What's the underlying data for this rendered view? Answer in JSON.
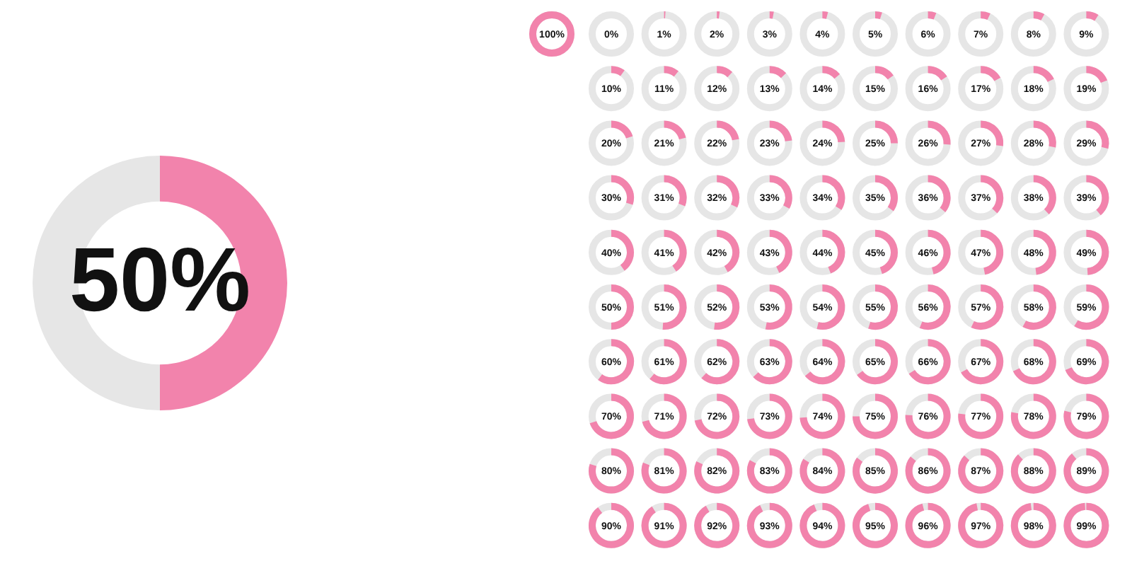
{
  "chart_data": [
    {
      "type": "donut",
      "categories": [
        null,
        null
      ],
      "values": [
        50,
        50
      ],
      "colors": [
        "#f283ac",
        "#e6e6e6"
      ],
      "annotations": [
        "50%"
      ]
    },
    {
      "type": "other",
      "color": "#f283ac",
      "values": [
        100,
        0,
        1,
        2,
        3,
        4,
        5,
        6,
        7,
        8,
        9,
        10,
        11,
        12,
        13,
        14,
        15,
        16,
        17,
        18,
        19,
        20,
        21,
        22,
        23,
        24,
        25,
        26,
        27,
        28,
        29,
        30,
        31,
        32,
        33,
        34,
        35,
        36,
        37,
        38,
        39,
        40,
        41,
        42,
        43,
        44,
        45,
        46,
        47,
        48,
        49,
        50,
        51,
        52,
        53,
        54,
        55,
        56,
        57,
        58,
        59,
        60,
        61,
        62,
        63,
        64,
        65,
        66,
        67,
        68,
        69,
        70,
        71,
        72,
        73,
        74,
        75,
        76,
        77,
        78,
        79,
        80,
        81,
        82,
        83,
        84,
        85,
        86,
        87,
        88,
        89,
        90,
        91,
        92,
        93,
        94,
        95,
        96,
        97,
        98,
        99
      ],
      "value_labels": [
        "100%",
        "0%",
        "1%",
        "2%",
        "3%",
        "4%",
        "5%",
        "6%",
        "7%",
        "8%",
        "9%",
        "10%",
        "11%",
        "12%",
        "13%",
        "14%",
        "15%",
        "16%",
        "17%",
        "18%",
        "19%",
        "20%",
        "21%",
        "22%",
        "23%",
        "24%",
        "25%",
        "26%",
        "27%",
        "28%",
        "29%",
        "30%",
        "31%",
        "32%",
        "33%",
        "34%",
        "35%",
        "36%",
        "37%",
        "38%",
        "39%",
        "40%",
        "41%",
        "42%",
        "43%",
        "44%",
        "45%",
        "46%",
        "47%",
        "48%",
        "49%",
        "50%",
        "51%",
        "52%",
        "53%",
        "54%",
        "55%",
        "56%",
        "57%",
        "58%",
        "59%",
        "60%",
        "61%",
        "62%",
        "63%",
        "64%",
        "65%",
        "66%",
        "67%",
        "68%",
        "69%",
        "70%",
        "71%",
        "72%",
        "73%",
        "74%",
        "75%",
        "76%",
        "77%",
        "78%",
        "79%",
        "80%",
        "81%",
        "82%",
        "83%",
        "84%",
        "85%",
        "86%",
        "87%",
        "88%",
        "89%",
        "90%",
        "91%",
        "92%",
        "93%",
        "94%",
        "95%",
        "96%",
        "97%",
        "98%",
        "99%"
      ]
    }
  ]
}
